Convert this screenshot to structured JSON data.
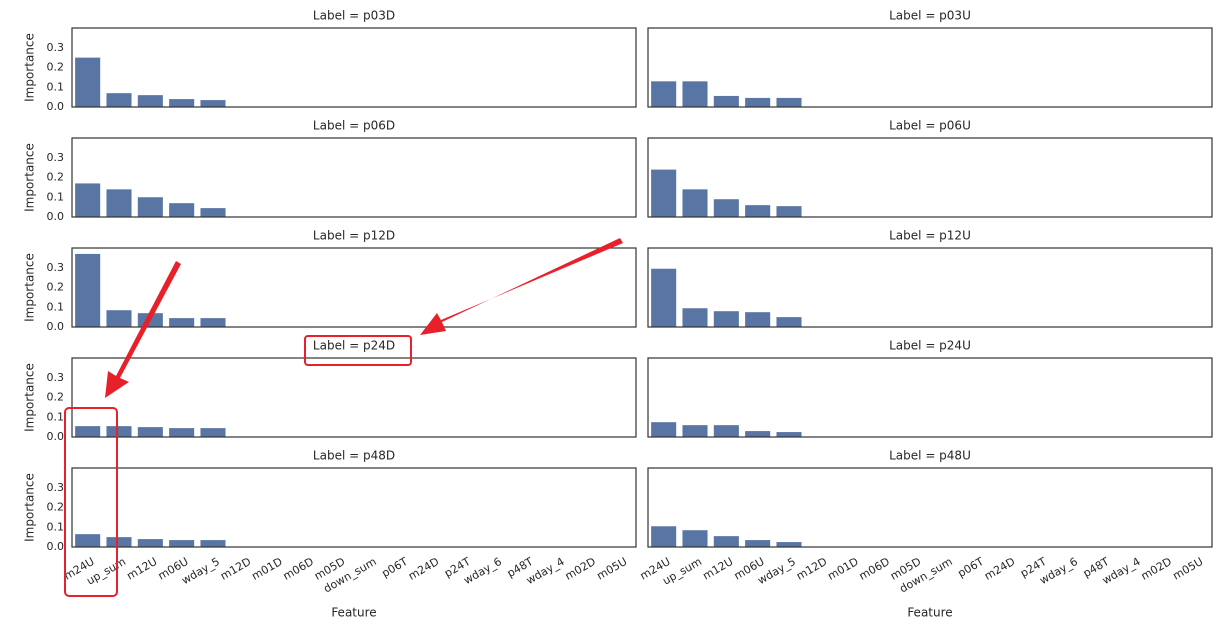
{
  "chart_data": {
    "type": "bar",
    "xlabel": "Feature",
    "ylabel": "Importance",
    "color": "#5975a4",
    "ylim": [
      0,
      0.4
    ],
    "yticks": [
      {
        "value": 0,
        "label": "0.0"
      },
      0.1,
      0.2,
      0.3
    ],
    "categories": [
      "m24U",
      "up_sum",
      "m12U",
      "m06U",
      "wday_5",
      "m12D",
      "m01D",
      "m06D",
      "m05D",
      "down_sum",
      "p06T",
      "m24D",
      "p24T",
      "wday_6",
      "p48T",
      "wday_4",
      "m02D",
      "m05U"
    ],
    "panels": [
      {
        "title": "Label = p03D",
        "values": [
          0.25,
          0.07,
          0.06,
          0.04,
          0.035,
          0,
          0,
          0,
          0,
          0,
          0,
          0,
          0,
          0,
          0,
          0,
          0,
          0
        ]
      },
      {
        "title": "Label = p03U",
        "values": [
          0.13,
          0.13,
          0.056,
          0.046,
          0.046,
          0,
          0,
          0,
          0,
          0,
          0,
          0,
          0,
          0,
          0,
          0,
          0,
          0
        ]
      },
      {
        "title": "Label = p06D",
        "values": [
          0.17,
          0.14,
          0.1,
          0.07,
          0.045,
          0,
          0,
          0,
          0,
          0,
          0,
          0,
          0,
          0,
          0,
          0,
          0,
          0
        ]
      },
      {
        "title": "Label = p06U",
        "values": [
          0.24,
          0.14,
          0.09,
          0.06,
          0.055,
          0,
          0,
          0,
          0,
          0,
          0,
          0,
          0,
          0,
          0,
          0,
          0,
          0
        ]
      },
      {
        "title": "Label = p12D",
        "values": [
          0.37,
          0.085,
          0.07,
          0.045,
          0.045,
          0,
          0,
          0,
          0,
          0,
          0,
          0,
          0,
          0,
          0,
          0,
          0,
          0
        ]
      },
      {
        "title": "Label = p12U",
        "values": [
          0.295,
          0.095,
          0.08,
          0.075,
          0.05,
          0,
          0,
          0,
          0,
          0,
          0,
          0,
          0,
          0,
          0,
          0,
          0,
          0
        ]
      },
      {
        "title": "Label = p24D",
        "values": [
          0.055,
          0.055,
          0.05,
          0.045,
          0.045,
          0,
          0,
          0,
          0,
          0,
          0,
          0,
          0,
          0,
          0,
          0,
          0,
          0
        ]
      },
      {
        "title": "Label = p24U",
        "values": [
          0.075,
          0.06,
          0.06,
          0.03,
          0.025,
          0,
          0,
          0,
          0,
          0,
          0,
          0,
          0,
          0,
          0,
          0,
          0,
          0
        ]
      },
      {
        "title": "Label = p48D",
        "values": [
          0.065,
          0.05,
          0.04,
          0.035,
          0.035,
          0,
          0,
          0,
          0,
          0,
          0,
          0,
          0,
          0,
          0,
          0,
          0,
          0
        ]
      },
      {
        "title": "Label = p48U",
        "values": [
          0.105,
          0.085,
          0.055,
          0.035,
          0.025,
          0,
          0,
          0,
          0,
          0,
          0,
          0,
          0,
          0,
          0,
          0,
          0,
          0
        ]
      }
    ]
  }
}
